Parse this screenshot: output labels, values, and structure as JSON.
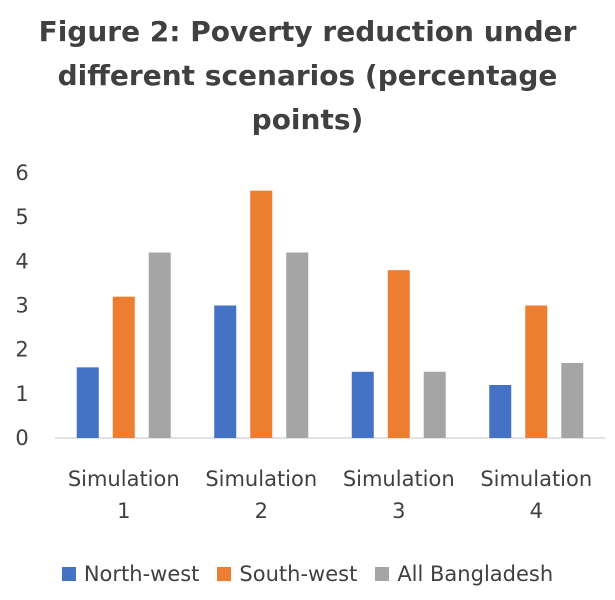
{
  "chart_data": {
    "type": "bar",
    "title": "Figure 2: Poverty reduction under different scenarios (percentage points)",
    "categories": [
      "Simulation 1",
      "Simulation 2",
      "Simulation 3",
      "Simulation 4"
    ],
    "series": [
      {
        "name": "North-west",
        "color": "#4472C4",
        "values": [
          1.6,
          3.0,
          1.5,
          1.2
        ]
      },
      {
        "name": "South-west",
        "color": "#ED7D31",
        "values": [
          3.2,
          5.6,
          3.8,
          3.0
        ]
      },
      {
        "name": "All Bangladesh",
        "color": "#A5A5A5",
        "values": [
          4.2,
          4.2,
          1.5,
          1.7
        ]
      }
    ],
    "ylim": [
      0,
      6
    ],
    "yticks": [
      0,
      1,
      2,
      3,
      4,
      5,
      6
    ],
    "legend_position": "bottom",
    "grid": false
  }
}
